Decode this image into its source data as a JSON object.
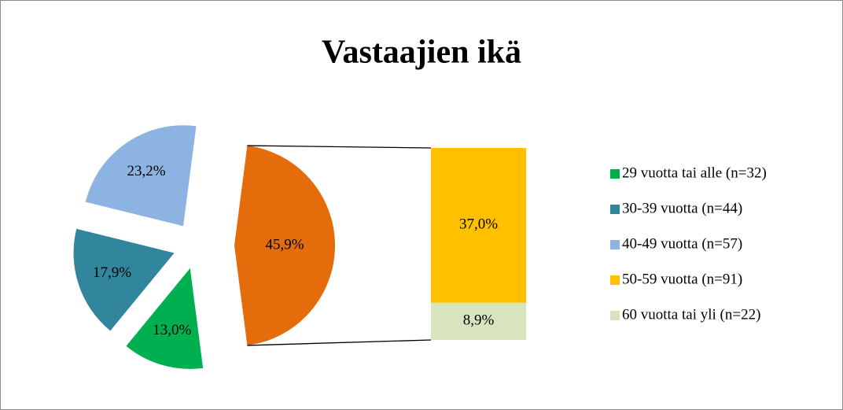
{
  "chart_data": {
    "type": "pie",
    "title": "Vastaajien ikä",
    "categories": [
      "29 vuotta tai alle (n=32)",
      "30-39 vuotta (n=44)",
      "40-49 vuotta (n=57)",
      null
    ],
    "values": [
      13.0,
      17.9,
      23.2,
      45.9
    ],
    "value_labels": [
      "13,0%",
      "17,9%",
      "23,2%",
      "45,9%"
    ],
    "colors": [
      "#00b050",
      "#31859c",
      "#8db3e2",
      "#e46c0a"
    ],
    "bar": {
      "categories": [
        "50-59 vuotta (n=91)",
        "60 vuotta tai yli (n=22)"
      ],
      "values": [
        37.0,
        8.9
      ],
      "value_labels": [
        "37,0%",
        "8,9%"
      ],
      "colors": [
        "#ffc000",
        "#d7e4bd"
      ]
    }
  }
}
